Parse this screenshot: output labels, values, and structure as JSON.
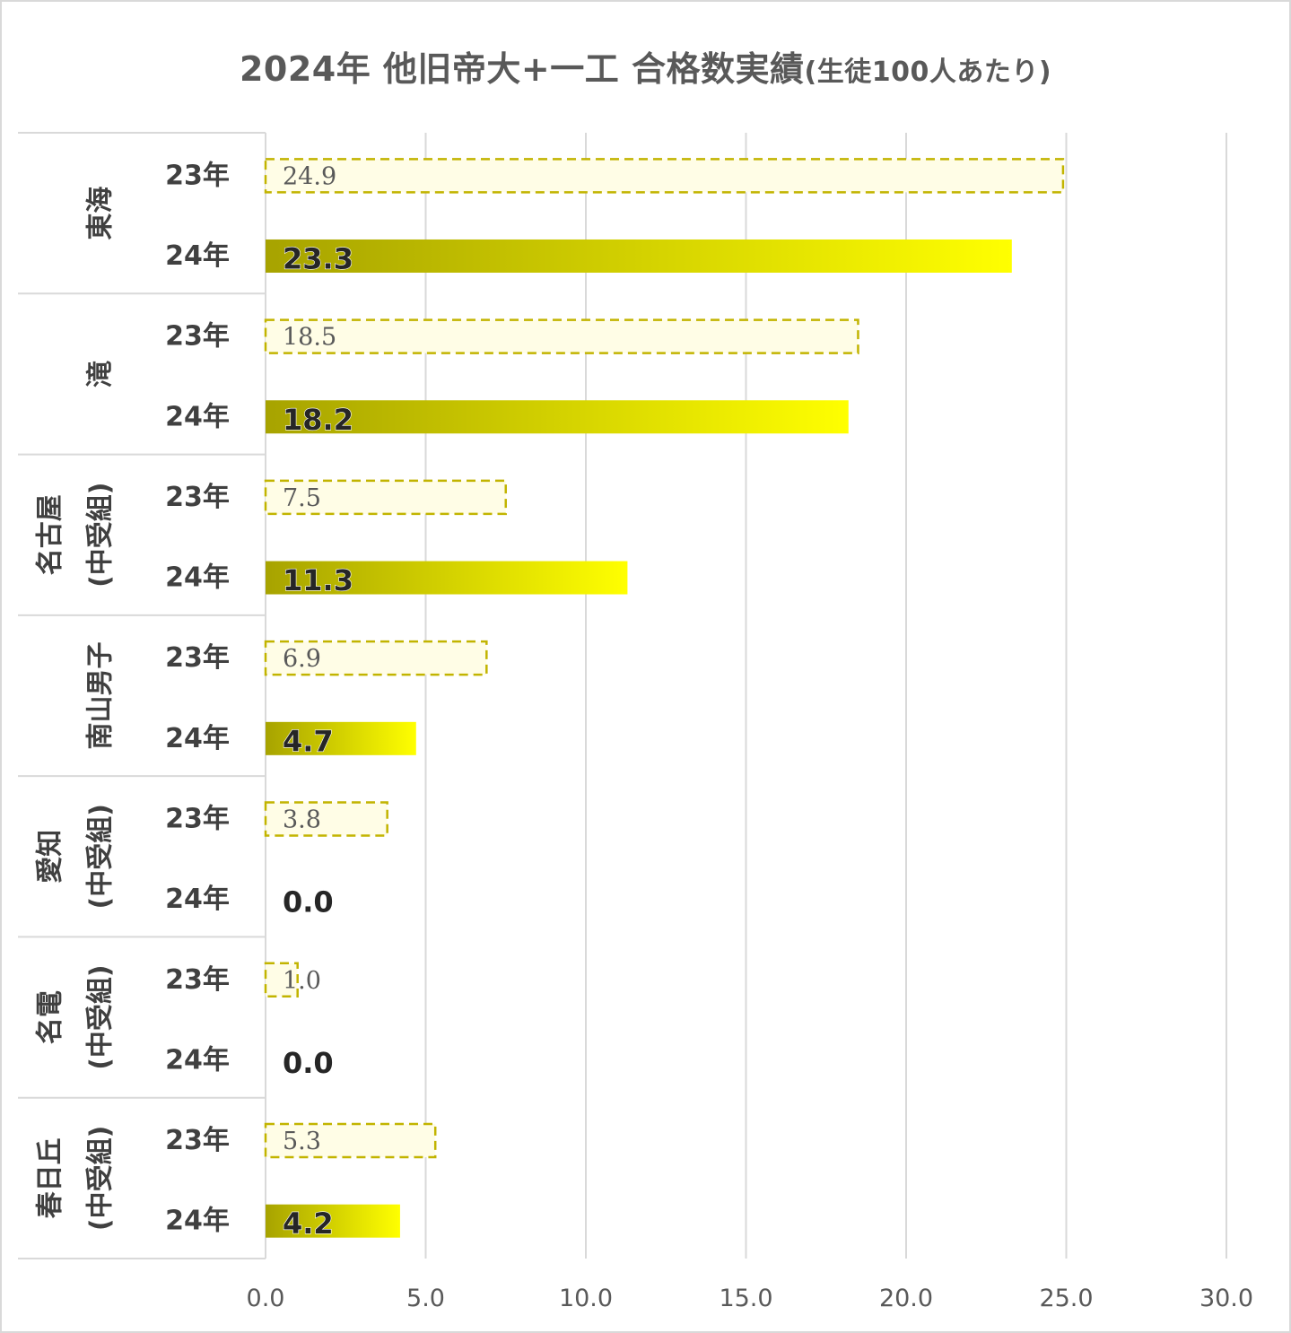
{
  "title_main": "2024年 他旧帝大+一工 合格数実績",
  "title_suffix": "(生徒100人あたり)",
  "chart_data": {
    "type": "bar",
    "orientation": "horizontal",
    "title": "2024年 他旧帝大+一工 合格数実績(生徒100人あたり)",
    "xlim": [
      0,
      30
    ],
    "x_ticks": [
      "0.0",
      "5.0",
      "10.0",
      "15.0",
      "20.0",
      "25.0",
      "30.0"
    ],
    "grid": true,
    "legend": "none",
    "groups": [
      {
        "name_lines": [
          "東海"
        ],
        "categories": [
          "23年",
          "24年"
        ],
        "values": [
          24.9,
          23.3
        ],
        "labels": [
          "24.9",
          "23.3"
        ]
      },
      {
        "name_lines": [
          "滝"
        ],
        "categories": [
          "23年",
          "24年"
        ],
        "values": [
          18.5,
          18.2
        ],
        "labels": [
          "18.5",
          "18.2"
        ]
      },
      {
        "name_lines": [
          "名古屋",
          "(中受組)"
        ],
        "categories": [
          "23年",
          "24年"
        ],
        "values": [
          7.5,
          11.3
        ],
        "labels": [
          "7.5",
          "11.3"
        ]
      },
      {
        "name_lines": [
          "南山男子"
        ],
        "categories": [
          "23年",
          "24年"
        ],
        "values": [
          6.9,
          4.7
        ],
        "labels": [
          "6.9",
          "4.7"
        ]
      },
      {
        "name_lines": [
          "愛知",
          "(中受組)"
        ],
        "categories": [
          "23年",
          "24年"
        ],
        "values": [
          3.8,
          0.0
        ],
        "labels": [
          "3.8",
          "0.0"
        ]
      },
      {
        "name_lines": [
          "名電",
          "(中受組)"
        ],
        "categories": [
          "23年",
          "24年"
        ],
        "values": [
          1.0,
          0.0
        ],
        "labels": [
          "1.0",
          "0.0"
        ]
      },
      {
        "name_lines": [
          "春日丘",
          "(中受組)"
        ],
        "categories": [
          "23年",
          "24年"
        ],
        "values": [
          5.3,
          4.2
        ],
        "labels": [
          "5.3",
          "4.2"
        ]
      }
    ]
  },
  "colors": {
    "bar_23_fill": "#fffde6",
    "bar_23_border": "#c2b400",
    "bar_24_start": "#a7a300",
    "bar_24_end": "#ffff00",
    "grid": "#d9d9d9",
    "border": "#d9d9d9"
  }
}
